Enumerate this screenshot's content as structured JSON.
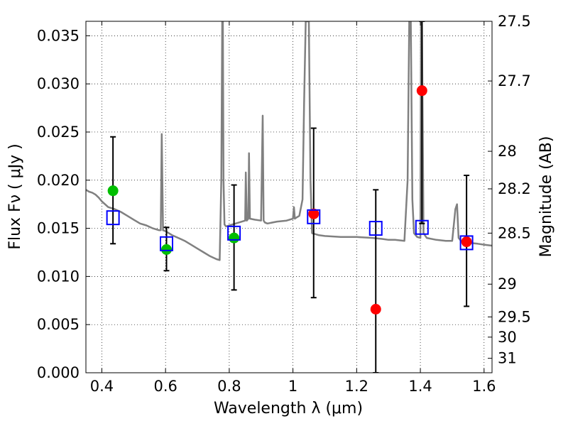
{
  "chart_data": {
    "type": "scatter",
    "xlabel": "Wavelength  λ (μm)",
    "ylabel": "Flux  Fν  ( μJy )",
    "ylabel_right": "Magnitude (AB)",
    "xlim": [
      0.35,
      1.625
    ],
    "ylim": [
      0.0,
      0.0365
    ],
    "grid": true,
    "x_ticks": [
      0.4,
      0.6,
      0.8,
      1.0,
      1.2,
      1.4,
      1.6
    ],
    "x_tick_labels": [
      "0.4",
      "0.6",
      "0.8",
      "1",
      "1.2",
      "1.4",
      "1.6"
    ],
    "y_ticks": [
      0.0,
      0.005,
      0.01,
      0.015,
      0.02,
      0.025,
      0.03,
      0.035
    ],
    "y_tick_labels": [
      "0.000",
      "0.005",
      "0.010",
      "0.015",
      "0.020",
      "0.025",
      "0.030",
      "0.035"
    ],
    "right_ticks": [
      {
        "flux": 0.0365,
        "label": "27.5"
      },
      {
        "flux": 0.0303,
        "label": "27.7"
      },
      {
        "flux": 0.023,
        "label": "28"
      },
      {
        "flux": 0.0191,
        "label": "28.2"
      },
      {
        "flux": 0.0145,
        "label": "28.5"
      },
      {
        "flux": 0.0092,
        "label": "29"
      },
      {
        "flux": 0.0058,
        "label": "29.5"
      },
      {
        "flux": 0.0037,
        "label": "30"
      },
      {
        "flux": 0.0015,
        "label": "31"
      }
    ],
    "model_spectrum": {
      "color": "#808080",
      "x": [
        0.35,
        0.36,
        0.37,
        0.38,
        0.39,
        0.4,
        0.42,
        0.44,
        0.46,
        0.48,
        0.5,
        0.52,
        0.54,
        0.56,
        0.58,
        0.585,
        0.588,
        0.592,
        0.6,
        0.62,
        0.64,
        0.66,
        0.68,
        0.7,
        0.72,
        0.74,
        0.76,
        0.77,
        0.775,
        0.778,
        0.78,
        0.782,
        0.785,
        0.79,
        0.8,
        0.82,
        0.84,
        0.85,
        0.852,
        0.855,
        0.86,
        0.862,
        0.865,
        0.88,
        0.9,
        0.905,
        0.908,
        0.912,
        0.92,
        0.95,
        0.98,
        1.0,
        1.003,
        1.006,
        1.01,
        1.02,
        1.03,
        1.035,
        1.04,
        1.045,
        1.05,
        1.055,
        1.06,
        1.08,
        1.1,
        1.15,
        1.2,
        1.25,
        1.28,
        1.3,
        1.32,
        1.35,
        1.36,
        1.365,
        1.37,
        1.375,
        1.38,
        1.39,
        1.4,
        1.402,
        1.405,
        1.41,
        1.42,
        1.45,
        1.48,
        1.5,
        1.51,
        1.515,
        1.52,
        1.53,
        1.55,
        1.58,
        1.6,
        1.625
      ],
      "y": [
        0.019,
        0.0188,
        0.0187,
        0.0185,
        0.0182,
        0.0178,
        0.0172,
        0.017,
        0.0167,
        0.0163,
        0.0159,
        0.0155,
        0.0153,
        0.015,
        0.0148,
        0.0148,
        0.0248,
        0.0148,
        0.0147,
        0.0143,
        0.014,
        0.0137,
        0.0133,
        0.0129,
        0.0125,
        0.0121,
        0.0118,
        0.0117,
        0.02,
        0.0365,
        0.0365,
        0.02,
        0.0154,
        0.0152,
        0.0153,
        0.0155,
        0.0157,
        0.0158,
        0.0208,
        0.0158,
        0.016,
        0.0228,
        0.016,
        0.0159,
        0.0158,
        0.0267,
        0.0158,
        0.0156,
        0.0155,
        0.0157,
        0.0158,
        0.016,
        0.0172,
        0.016,
        0.0161,
        0.0163,
        0.018,
        0.028,
        0.0365,
        0.0365,
        0.0365,
        0.02,
        0.0145,
        0.0143,
        0.0142,
        0.0141,
        0.0141,
        0.014,
        0.0139,
        0.0138,
        0.0138,
        0.0137,
        0.02,
        0.0365,
        0.0365,
        0.018,
        0.0145,
        0.0141,
        0.014,
        0.0365,
        0.0365,
        0.0145,
        0.014,
        0.0138,
        0.0137,
        0.0137,
        0.017,
        0.0175,
        0.014,
        0.0136,
        0.0135,
        0.0134,
        0.0133,
        0.0132
      ]
    },
    "error_bars": [
      {
        "x": 0.435,
        "low": 0.0134,
        "high": 0.0245
      },
      {
        "x": 0.603,
        "low": 0.0106,
        "high": 0.0151
      },
      {
        "x": 0.815,
        "low": 0.0086,
        "high": 0.0195
      },
      {
        "x": 1.065,
        "low": 0.0078,
        "high": 0.0254
      },
      {
        "x": 1.26,
        "low": 0.0,
        "high": 0.019
      },
      {
        "x": 1.405,
        "low": 0.0155,
        "high": 0.0365
      },
      {
        "x": 1.545,
        "low": 0.0069,
        "high": 0.0205
      }
    ],
    "series": [
      {
        "marker": "circle",
        "color": "#00bf00",
        "points": [
          [
            0.435,
            0.0189
          ],
          [
            0.603,
            0.0128
          ],
          [
            0.815,
            0.014
          ]
        ]
      },
      {
        "marker": "circle",
        "color": "#ff0000",
        "points": [
          [
            1.065,
            0.0165
          ],
          [
            1.26,
            0.0066
          ],
          [
            1.405,
            0.0293
          ],
          [
            1.545,
            0.0136
          ]
        ]
      },
      {
        "marker": "square-open",
        "color": "#0000ff",
        "points": [
          [
            0.435,
            0.0161
          ],
          [
            0.603,
            0.0134
          ],
          [
            0.815,
            0.0145
          ],
          [
            1.065,
            0.0162
          ],
          [
            1.26,
            0.015
          ],
          [
            1.405,
            0.0151
          ],
          [
            1.545,
            0.0135
          ]
        ]
      }
    ]
  }
}
